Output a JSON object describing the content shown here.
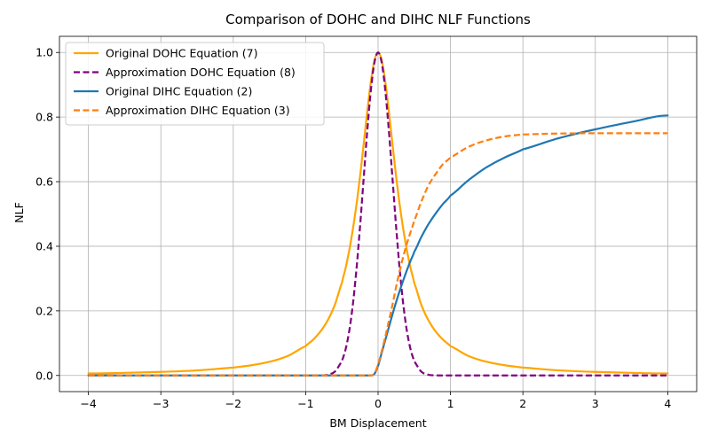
{
  "chart_data": {
    "type": "line",
    "title": "Comparison of DOHC and DIHC NLF Functions",
    "xlabel": "BM Displacement",
    "ylabel": "NLF",
    "xlim": [
      -4.4,
      4.4
    ],
    "ylim": [
      -0.05,
      1.05
    ],
    "x_ticks": [
      -4,
      -3,
      -2,
      -1,
      0,
      1,
      2,
      3,
      4
    ],
    "x_tick_labels": [
      "−4",
      "−3",
      "−2",
      "−1",
      "0",
      "1",
      "2",
      "3",
      "4"
    ],
    "y_ticks": [
      0.0,
      0.2,
      0.4,
      0.6,
      0.8,
      1.0
    ],
    "y_tick_labels": [
      "0.0",
      "0.2",
      "0.4",
      "0.6",
      "0.8",
      "1.0"
    ],
    "grid": true,
    "legend_position": "top-left",
    "x": [
      -4,
      -3.5,
      -3,
      -2.5,
      -2,
      -1.75,
      -1.5,
      -1.25,
      -1,
      -0.9,
      -0.8,
      -0.7,
      -0.6,
      -0.5,
      -0.45,
      -0.4,
      -0.35,
      -0.3,
      -0.25,
      -0.2,
      -0.15,
      -0.1,
      -0.05,
      0,
      0.05,
      0.1,
      0.15,
      0.2,
      0.25,
      0.3,
      0.35,
      0.4,
      0.45,
      0.5,
      0.6,
      0.7,
      0.8,
      0.9,
      1,
      1.25,
      1.5,
      1.75,
      2,
      2.5,
      3,
      3.5,
      4
    ],
    "series": [
      {
        "name": "Original DOHC Equation (7)",
        "color": "#ffa500",
        "style": "solid",
        "values": [
          0.0062,
          0.0081,
          0.011,
          0.0157,
          0.0244,
          0.0316,
          0.0424,
          0.0602,
          0.0909,
          0.11,
          0.135,
          0.169,
          0.217,
          0.286,
          0.331,
          0.385,
          0.45,
          0.526,
          0.615,
          0.714,
          0.816,
          0.909,
          0.976,
          1.0,
          0.976,
          0.909,
          0.816,
          0.714,
          0.615,
          0.526,
          0.45,
          0.385,
          0.331,
          0.286,
          0.217,
          0.169,
          0.135,
          0.11,
          0.0909,
          0.0602,
          0.0424,
          0.0316,
          0.0244,
          0.0157,
          0.011,
          0.0081,
          0.0062
        ]
      },
      {
        "name": "Approximation DOHC Equation (8)",
        "color": "#800080",
        "style": "dashed",
        "values": [
          0,
          0,
          0,
          0,
          0,
          0,
          0,
          0,
          0,
          0,
          0.0003,
          0.0021,
          0.0111,
          0.0439,
          0.0796,
          0.135,
          0.216,
          0.325,
          0.458,
          0.607,
          0.755,
          0.882,
          0.969,
          1.0,
          0.969,
          0.882,
          0.755,
          0.607,
          0.458,
          0.325,
          0.216,
          0.135,
          0.0796,
          0.0439,
          0.0111,
          0.0021,
          0.0003,
          0,
          0,
          0,
          0,
          0,
          0,
          0,
          0,
          0,
          0
        ]
      },
      {
        "name": "Original DIHC Equation (2)",
        "color": "#1f77b4",
        "style": "solid",
        "values": [
          0,
          0,
          0,
          0,
          0,
          0,
          0,
          0,
          0,
          0,
          0,
          0,
          0,
          0,
          0,
          0,
          0,
          0,
          0,
          0,
          0,
          0,
          0.005,
          0.03,
          0.07,
          0.11,
          0.15,
          0.19,
          0.228,
          0.263,
          0.296,
          0.327,
          0.356,
          0.383,
          0.43,
          0.47,
          0.503,
          0.532,
          0.557,
          0.605,
          0.645,
          0.675,
          0.7,
          0.735,
          0.762,
          0.785,
          0.805
        ]
      },
      {
        "name": "Approximation DIHC Equation (3)",
        "color": "#ff7f0e",
        "style": "dashed",
        "values": [
          0,
          0,
          0,
          0,
          0,
          0,
          0,
          0,
          0,
          0,
          0,
          0,
          0,
          0,
          0,
          0,
          0,
          0,
          0,
          0,
          0,
          0,
          0.005,
          0.035,
          0.075,
          0.12,
          0.17,
          0.22,
          0.275,
          0.325,
          0.37,
          0.41,
          0.445,
          0.48,
          0.54,
          0.59,
          0.625,
          0.655,
          0.675,
          0.708,
          0.728,
          0.74,
          0.746,
          0.749,
          0.75,
          0.75,
          0.75
        ]
      }
    ]
  }
}
